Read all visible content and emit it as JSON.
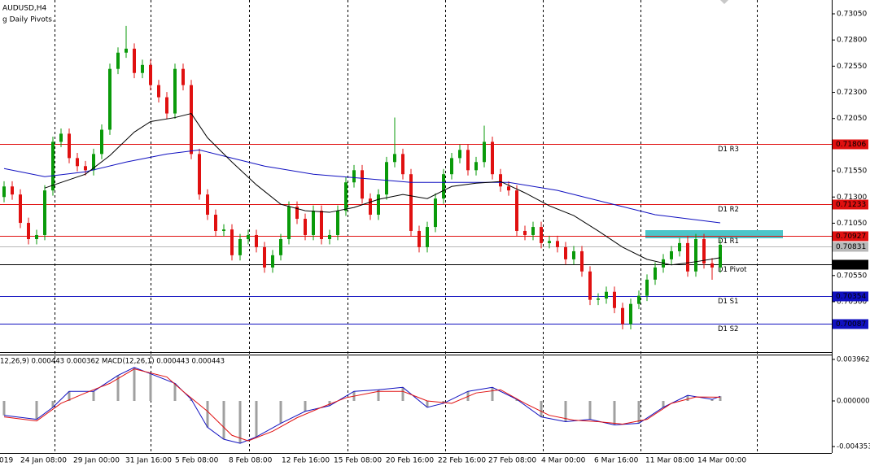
{
  "chart_data": [
    {
      "type": "candlestick",
      "title": "AUDUSD,H4",
      "subtitle": "g Daily Pivots.",
      "open": [
        0.713,
        0.71401,
        0.71324,
        0.71053,
        0.70898,
        0.70937,
        0.71363,
        0.71827,
        0.71905,
        0.71672,
        0.71595,
        0.71556,
        0.71711,
        0.71943,
        0.72524,
        0.72679,
        0.72717,
        0.72485,
        0.72562,
        0.72369,
        0.72253,
        0.72098,
        0.72524,
        0.72369,
        0.71711,
        0.71324,
        0.71131,
        0.70976,
        0.7099,
        0.70744,
        0.70898,
        0.70937,
        0.70821,
        0.70627,
        0.70744,
        0.70898,
        0.71208,
        0.71092,
        0.70937,
        0.71169,
        0.70898,
        0.70937,
        0.71169,
        0.7144,
        0.71556,
        0.71285,
        0.71131,
        0.71324,
        0.71634,
        0.71711,
        0.71518,
        0.70976,
        0.70821,
        0.71014,
        0.71285,
        0.71518,
        0.71672,
        0.7175,
        0.71556,
        0.71634,
        0.71827,
        0.71518,
        0.71401,
        0.71363,
        0.70976,
        0.70937,
        0.71014,
        0.7086,
        0.7088,
        0.70821,
        0.70705,
        0.70782,
        0.70589,
        0.70318,
        0.7033,
        0.70395,
        0.7024,
        0.70086,
        0.70279,
        0.70357,
        0.70511,
        0.70627,
        0.70705,
        0.70782,
        0.7086,
        0.70589,
        0.70898,
        0.70666,
        0.70627
      ],
      "high": [
        0.71451,
        0.71451,
        0.71374,
        0.71103,
        0.70987,
        0.71413,
        0.71877,
        0.71955,
        0.71955,
        0.71722,
        0.71645,
        0.71761,
        0.71993,
        0.72574,
        0.72729,
        0.72934,
        0.72767,
        0.72612,
        0.72612,
        0.72419,
        0.72303,
        0.72574,
        0.72574,
        0.72419,
        0.71761,
        0.71374,
        0.71181,
        0.7104,
        0.7104,
        0.70948,
        0.70987,
        0.70987,
        0.70871,
        0.70794,
        0.70948,
        0.71258,
        0.71258,
        0.71142,
        0.71219,
        0.71219,
        0.70987,
        0.71219,
        0.7149,
        0.71606,
        0.71606,
        0.71335,
        0.71374,
        0.71684,
        0.72059,
        0.71761,
        0.71568,
        0.71026,
        0.71064,
        0.71335,
        0.71568,
        0.71722,
        0.718,
        0.718,
        0.71684,
        0.71982,
        0.71877,
        0.71568,
        0.71451,
        0.71413,
        0.71026,
        0.71064,
        0.71064,
        0.7093,
        0.7093,
        0.70871,
        0.70832,
        0.70832,
        0.70639,
        0.7038,
        0.70445,
        0.70445,
        0.7029,
        0.70329,
        0.70407,
        0.70561,
        0.70677,
        0.70755,
        0.70832,
        0.7091,
        0.7093,
        0.70948,
        0.70948,
        0.70716,
        0.70894
      ],
      "low": [
        0.7125,
        0.71274,
        0.71003,
        0.70848,
        0.70848,
        0.70887,
        0.71313,
        0.71777,
        0.71622,
        0.71545,
        0.71506,
        0.71506,
        0.71661,
        0.71893,
        0.72474,
        0.72629,
        0.72435,
        0.72435,
        0.72319,
        0.72203,
        0.72048,
        0.72048,
        0.72319,
        0.71661,
        0.71274,
        0.71081,
        0.70926,
        0.70926,
        0.70694,
        0.70694,
        0.70848,
        0.70771,
        0.70577,
        0.70577,
        0.70694,
        0.70848,
        0.71042,
        0.70887,
        0.70887,
        0.70848,
        0.70848,
        0.70887,
        0.71119,
        0.7139,
        0.71235,
        0.71081,
        0.71081,
        0.71274,
        0.71584,
        0.71468,
        0.70926,
        0.70771,
        0.70771,
        0.70964,
        0.71235,
        0.71468,
        0.71622,
        0.71506,
        0.71506,
        0.71584,
        0.71468,
        0.71351,
        0.71313,
        0.70926,
        0.70887,
        0.70887,
        0.7081,
        0.7081,
        0.70771,
        0.70655,
        0.70655,
        0.70539,
        0.70268,
        0.70268,
        0.7028,
        0.7019,
        0.70036,
        0.70036,
        0.70229,
        0.70307,
        0.70461,
        0.70577,
        0.70655,
        0.70732,
        0.70539,
        0.70539,
        0.70616,
        0.7051,
        0.70577
      ],
      "close": [
        0.71401,
        0.71324,
        0.71053,
        0.70898,
        0.70937,
        0.71363,
        0.71827,
        0.71905,
        0.71672,
        0.71595,
        0.71556,
        0.71711,
        0.71943,
        0.72524,
        0.72679,
        0.72717,
        0.72485,
        0.72562,
        0.72369,
        0.72253,
        0.72098,
        0.72524,
        0.72369,
        0.71711,
        0.71324,
        0.71131,
        0.70976,
        0.7099,
        0.70744,
        0.70898,
        0.70937,
        0.70821,
        0.70627,
        0.70744,
        0.70898,
        0.71208,
        0.71092,
        0.70937,
        0.71169,
        0.70898,
        0.70937,
        0.71169,
        0.7144,
        0.71556,
        0.71285,
        0.71131,
        0.71324,
        0.71634,
        0.71711,
        0.71518,
        0.70976,
        0.70821,
        0.71014,
        0.71285,
        0.71518,
        0.71672,
        0.7175,
        0.71556,
        0.71634,
        0.71827,
        0.71518,
        0.71401,
        0.71363,
        0.70976,
        0.70937,
        0.71014,
        0.7086,
        0.7088,
        0.70821,
        0.70705,
        0.70782,
        0.70589,
        0.70318,
        0.7033,
        0.70395,
        0.7024,
        0.70086,
        0.70279,
        0.70357,
        0.70511,
        0.70627,
        0.70705,
        0.70782,
        0.7086,
        0.70589,
        0.70898,
        0.70666,
        0.70627,
        0.70844
      ],
      "up_color": "#0a9a0a",
      "down_color": "#e01010",
      "lines": [
        {
          "color": "#1010c0",
          "x": [
            0,
            5,
            10,
            15,
            20,
            24,
            28,
            32,
            38,
            44,
            50,
            56,
            62,
            68,
            74,
            80,
            88
          ],
          "values": [
            0.71572,
            0.71494,
            0.71541,
            0.71634,
            0.71711,
            0.7175,
            0.71672,
            0.71595,
            0.71518,
            0.71479,
            0.7144,
            0.7144,
            0.7144,
            0.71363,
            0.71247,
            0.71131,
            0.71053
          ]
        },
        {
          "color": "#000000",
          "x": [
            5,
            10,
            13,
            16,
            18,
            21,
            23,
            25,
            28,
            31,
            34,
            37,
            40,
            43,
            46,
            49,
            52,
            55,
            58,
            61,
            64,
            67,
            70,
            73,
            76,
            79,
            82,
            85,
            88
          ],
          "values": [
            0.71386,
            0.71518,
            0.71696,
            0.7192,
            0.72021,
            0.72059,
            0.72098,
            0.71866,
            0.71634,
            0.71417,
            0.71231,
            0.71169,
            0.71154,
            0.712,
            0.71278,
            0.71324,
            0.71285,
            0.71401,
            0.71432,
            0.71448,
            0.7134,
            0.71216,
            0.71123,
            0.70976,
            0.70821,
            0.70705,
            0.70651,
            0.70682,
            0.7072
          ]
        }
      ],
      "levels": [
        {
          "name": "D1 R3",
          "value": 0.71806,
          "color": "#e01010"
        },
        {
          "name": "D1 R2",
          "value": 0.71233,
          "color": "#e01010"
        },
        {
          "name": "D1 R1",
          "value": 0.70927,
          "color": "#e01010"
        },
        {
          "name": "D1 Pivot",
          "value": 0.7066,
          "color": "#000000"
        },
        {
          "name": "D1 S1",
          "value": 0.70354,
          "color": "#1010c0"
        },
        {
          "name": "D1 S2",
          "value": 0.70087,
          "color": "#1010c0"
        }
      ],
      "bid": {
        "value": 0.70831,
        "color": "#b8b8b8"
      },
      "ylim": [
        0.69826,
        0.73182
      ],
      "yticks": [
        {
          "value": 0.7305,
          "label": "0.73050"
        },
        {
          "value": 0.728,
          "label": "0.72800"
        },
        {
          "value": 0.7255,
          "label": "0.72550"
        },
        {
          "value": 0.723,
          "label": "0.72300"
        },
        {
          "value": 0.7205,
          "label": "0.72050"
        },
        {
          "value": 0.7155,
          "label": "0.71550"
        },
        {
          "value": 0.713,
          "label": "0.71300"
        },
        {
          "value": 0.7105,
          "label": "0.71050"
        },
        {
          "value": 0.7055,
          "label": "0.70550"
        },
        {
          "value": 0.703,
          "label": "0.70300"
        }
      ],
      "xlabels": [
        "019",
        "24 Jan 08:00",
        "29 Jan 00:00",
        "31 Jan 16:00",
        "5 Feb 08:00",
        "8 Feb 08:00",
        "12 Feb 16:00",
        "15 Feb 08:00",
        "20 Feb 16:00",
        "22 Feb 16:00",
        "27 Feb 08:00",
        "4 Mar 00:00",
        "6 Mar 16:00",
        "11 Mar 08:00",
        "14 Mar 00:00"
      ]
    },
    {
      "type": "macd",
      "title": "12,26,9) 0.000443 0.000362 MACD(12,26,1) 0.000443 0.000443",
      "ylim": [
        -0.004963,
        0.004343
      ],
      "yticks": [
        0.003962,
        {
          "value": 0,
          "label": "0.000000"
        },
        -0.004353
      ],
      "histogram_color": "#a0a0a0",
      "series": [
        {
          "color": "#1010c0",
          "x": [
            0,
            4,
            6,
            8,
            11,
            14,
            16,
            18,
            21,
            23,
            25,
            27,
            29,
            31,
            34,
            37,
            40,
            43,
            46,
            49,
            52,
            54,
            57,
            60,
            63,
            66,
            69,
            72,
            75,
            78,
            81,
            84,
            87,
            88
          ],
          "values": [
            -0.001372,
            -0.001753,
            -0.00061,
            0.000914,
            0.000914,
            0.002438,
            0.0032,
            0.002591,
            0.001676,
            0.000152,
            -0.002515,
            -0.003658,
            -0.004039,
            -0.003429,
            -0.002134,
            -0.000991,
            -0.000457,
            0.000914,
            0.001067,
            0.001295,
            -0.00061,
            -0.000229,
            0.000914,
            0.001295,
            0.000152,
            -0.001524,
            -0.001981,
            -0.001753,
            -0.002286,
            -0.002134,
            -0.00061,
            0.000533,
            0.000152,
            0.000443
          ]
        },
        {
          "color": "#e01010",
          "x": [
            0,
            4,
            7,
            10,
            13,
            16,
            20,
            22,
            25,
            28,
            30,
            33,
            36,
            39,
            42,
            46,
            49,
            52,
            55,
            58,
            61,
            64,
            67,
            70,
            73,
            76,
            79,
            82,
            85,
            88
          ],
          "values": [
            -0.001524,
            -0.001905,
            -0.000229,
            0.000762,
            0.001676,
            0.003048,
            0.002286,
            0.000914,
            -0.000991,
            -0.003277,
            -0.00381,
            -0.002896,
            -0.0016,
            -0.00061,
            0.000305,
            0.000914,
            0.000914,
            0,
            -0.000229,
            0.000762,
            0.001067,
            -0.000229,
            -0.001372,
            -0.001829,
            -0.001981,
            -0.00221,
            -0.001753,
            -0.000229,
            0.000381,
            0.000362
          ]
        }
      ]
    }
  ]
}
